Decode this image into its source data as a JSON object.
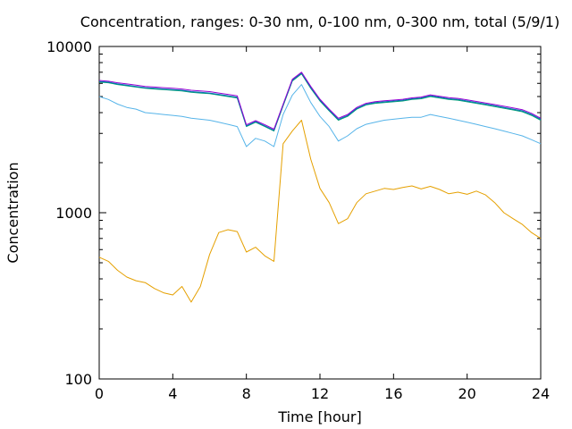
{
  "chart_data": {
    "type": "line",
    "title": "Concentration, ranges: 0-30 nm, 0-100 nm, 0-300 nm, total (5/9/1)",
    "xlabel": "Time [hour]",
    "ylabel": "Concentration",
    "xlim": [
      0,
      24
    ],
    "ylim": [
      100,
      10000
    ],
    "yscale": "log",
    "grid": false,
    "legend": "none",
    "xticks": [
      0,
      4,
      8,
      12,
      16,
      20,
      24
    ],
    "yticks": [
      100,
      1000,
      10000
    ],
    "x": [
      0,
      0.5,
      1,
      1.5,
      2,
      2.5,
      3,
      3.5,
      4,
      4.5,
      5,
      5.5,
      6,
      6.5,
      7,
      7.5,
      8,
      8.5,
      9,
      9.5,
      10,
      10.5,
      11,
      11.5,
      12,
      12.5,
      13,
      13.5,
      14,
      14.5,
      15,
      15.5,
      16,
      16.5,
      17,
      17.5,
      18,
      18.5,
      19,
      19.5,
      20,
      20.5,
      21,
      21.5,
      22,
      22.5,
      23,
      23.5,
      24
    ],
    "series": [
      {
        "color": "#e5a000",
        "values": [
          540,
          510,
          450,
          410,
          390,
          380,
          350,
          330,
          320,
          360,
          290,
          360,
          560,
          760,
          790,
          770,
          580,
          620,
          550,
          510,
          2600,
          3100,
          3600,
          2100,
          1400,
          1150,
          860,
          920,
          1150,
          1300,
          1350,
          1400,
          1380,
          1420,
          1450,
          1390,
          1440,
          1380,
          1300,
          1330,
          1290,
          1350,
          1280,
          1150,
          1000,
          920,
          850,
          760,
          700
        ]
      },
      {
        "color": "#56b4e9",
        "values": [
          5000,
          4800,
          4500,
          4300,
          4200,
          4000,
          3950,
          3900,
          3850,
          3800,
          3700,
          3650,
          3600,
          3500,
          3400,
          3300,
          2500,
          2800,
          2700,
          2500,
          3900,
          5100,
          5900,
          4600,
          3800,
          3300,
          2700,
          2900,
          3200,
          3400,
          3500,
          3600,
          3650,
          3700,
          3750,
          3750,
          3900,
          3800,
          3700,
          3600,
          3500,
          3400,
          3300,
          3200,
          3100,
          3000,
          2900,
          2750,
          2600
        ]
      },
      {
        "color": "#009e73",
        "values": [
          6100,
          6050,
          5900,
          5800,
          5700,
          5600,
          5550,
          5500,
          5450,
          5400,
          5300,
          5250,
          5200,
          5100,
          5000,
          4900,
          3300,
          3500,
          3300,
          3100,
          4400,
          6200,
          6850,
          5600,
          4700,
          4100,
          3600,
          3800,
          4200,
          4450,
          4550,
          4600,
          4650,
          4700,
          4800,
          4850,
          5000,
          4900,
          4800,
          4750,
          4650,
          4550,
          4450,
          4350,
          4250,
          4150,
          4050,
          3850,
          3600
        ]
      },
      {
        "color": "#0072b2",
        "values": [
          6150,
          6100,
          5950,
          5850,
          5750,
          5650,
          5600,
          5550,
          5500,
          5450,
          5350,
          5300,
          5250,
          5150,
          5050,
          4950,
          3330,
          3530,
          3330,
          3130,
          4440,
          6260,
          6920,
          5660,
          4750,
          4140,
          3640,
          3840,
          4240,
          4490,
          4600,
          4650,
          4700,
          4750,
          4850,
          4900,
          5050,
          4950,
          4850,
          4800,
          4700,
          4600,
          4500,
          4400,
          4300,
          4200,
          4100,
          3900,
          3650
        ]
      },
      {
        "color": "#9400d3",
        "values": [
          6250,
          6180,
          6050,
          5950,
          5850,
          5750,
          5700,
          5650,
          5600,
          5550,
          5450,
          5400,
          5350,
          5250,
          5150,
          5050,
          3380,
          3580,
          3380,
          3180,
          4500,
          6350,
          7000,
          5750,
          4820,
          4200,
          3700,
          3900,
          4300,
          4550,
          4660,
          4710,
          4760,
          4810,
          4910,
          4960,
          5120,
          5020,
          4920,
          4870,
          4770,
          4670,
          4570,
          4470,
          4370,
          4270,
          4170,
          3960,
          3700
        ]
      }
    ]
  }
}
